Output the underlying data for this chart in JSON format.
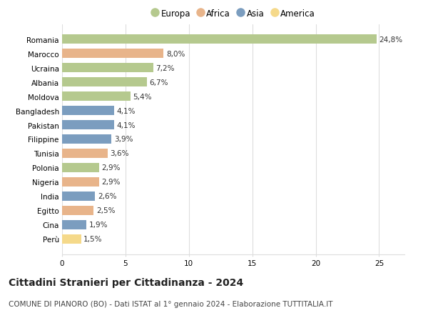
{
  "countries": [
    "Romania",
    "Marocco",
    "Ucraina",
    "Albania",
    "Moldova",
    "Bangladesh",
    "Pakistan",
    "Filippine",
    "Tunisia",
    "Polonia",
    "Nigeria",
    "India",
    "Egitto",
    "Cina",
    "Perù"
  ],
  "values": [
    24.8,
    8.0,
    7.2,
    6.7,
    5.4,
    4.1,
    4.1,
    3.9,
    3.6,
    2.9,
    2.9,
    2.6,
    2.5,
    1.9,
    1.5
  ],
  "labels": [
    "24,8%",
    "8,0%",
    "7,2%",
    "6,7%",
    "5,4%",
    "4,1%",
    "4,1%",
    "3,9%",
    "3,6%",
    "2,9%",
    "2,9%",
    "2,6%",
    "2,5%",
    "1,9%",
    "1,5%"
  ],
  "continents": [
    "Europa",
    "Africa",
    "Europa",
    "Europa",
    "Europa",
    "Asia",
    "Asia",
    "Asia",
    "Africa",
    "Europa",
    "Africa",
    "Asia",
    "Africa",
    "Asia",
    "America"
  ],
  "colors": {
    "Europa": "#b5c98e",
    "Africa": "#e8b48a",
    "Asia": "#7b9dbf",
    "America": "#f5d98a"
  },
  "legend_order": [
    "Europa",
    "Africa",
    "Asia",
    "America"
  ],
  "title": "Cittadini Stranieri per Cittadinanza - 2024",
  "subtitle": "COMUNE DI PIANORO (BO) - Dati ISTAT al 1° gennaio 2024 - Elaborazione TUTTITALIA.IT",
  "xlim": [
    0,
    27
  ],
  "xticks": [
    0,
    5,
    10,
    15,
    20,
    25
  ],
  "background_color": "#ffffff",
  "grid_color": "#dddddd",
  "title_fontsize": 10,
  "subtitle_fontsize": 7.5,
  "label_fontsize": 7.5,
  "tick_fontsize": 7.5,
  "legend_fontsize": 8.5
}
